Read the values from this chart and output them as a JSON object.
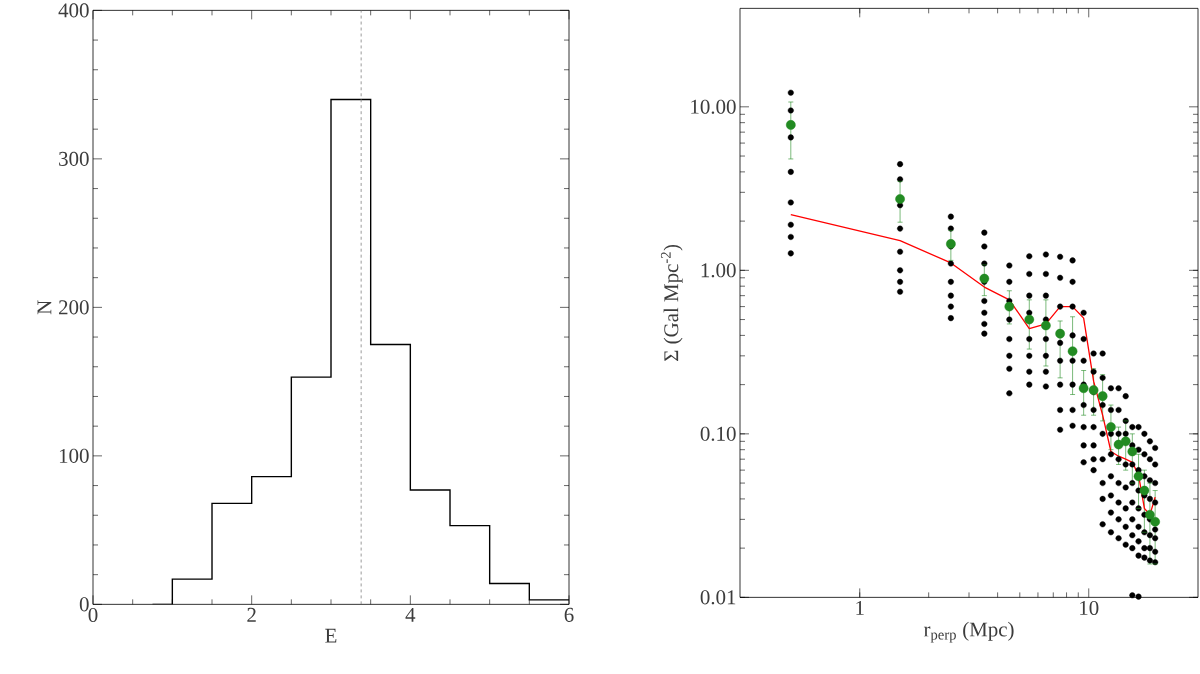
{
  "chart_data": [
    {
      "type": "histogram",
      "xlabel": "E",
      "ylabel": "N",
      "color": "#000000",
      "bins": [
        0.75,
        1.0,
        1.5,
        2.0,
        2.5,
        3.0,
        3.5,
        4.0,
        4.5,
        5.0,
        5.5,
        6.0
      ],
      "values": [
        0,
        17,
        68,
        86,
        153,
        340,
        175,
        77,
        53,
        14,
        3
      ],
      "xlim": [
        0,
        6
      ],
      "ylim": [
        0,
        400
      ],
      "xticks": [
        0,
        2,
        4,
        6
      ],
      "yticks": [
        0,
        100,
        200,
        300,
        400
      ],
      "ref_lines": [
        {
          "axis": "x",
          "value": 3.38,
          "color": "#808080",
          "line_style": "dashed"
        }
      ]
    },
    {
      "type": "scatter",
      "xlabel": "r$_{perp}$ (Mpc)",
      "ylabel": "Σ (Gal Mpc$^{-2}$)",
      "log": "xy",
      "xlim": [
        0.3,
        30
      ],
      "ylim": [
        0.01,
        40
      ],
      "xticks": [
        1,
        10
      ],
      "yticks": [
        {
          "value": 0.01,
          "label": "0.01"
        },
        {
          "value": 0.1,
          "label": "0.10"
        },
        {
          "value": 1,
          "label": "1.00"
        },
        {
          "value": 10,
          "label": "10.00"
        }
      ],
      "series": [
        {
          "type": "scatter",
          "color": "#000000",
          "marker": "circle",
          "x": [
            0.5,
            0.5,
            0.5,
            0.5,
            0.5,
            0.5,
            0.5,
            0.5,
            1.5,
            1.5,
            1.5,
            1.5,
            1.5,
            1.5,
            1.5,
            1.5,
            2.5,
            2.5,
            2.5,
            2.5,
            2.5,
            2.5,
            2.5,
            2.5,
            3.5,
            3.5,
            3.5,
            3.5,
            3.5,
            3.5,
            3.5,
            3.5,
            4.5,
            4.5,
            4.5,
            4.5,
            4.5,
            4.5,
            4.5,
            4.5,
            5.5,
            5.5,
            5.5,
            5.5,
            5.5,
            5.5,
            5.5,
            5.5,
            6.5,
            6.5,
            6.5,
            6.5,
            6.5,
            6.5,
            6.5,
            6.5,
            7.5,
            7.5,
            7.5,
            7.5,
            7.5,
            7.5,
            7.5,
            7.5,
            8.5,
            8.5,
            8.5,
            8.5,
            8.5,
            8.5,
            8.5,
            8.5,
            9.5,
            9.5,
            9.5,
            9.5,
            9.5,
            9.5,
            9.5,
            9.5,
            10.5,
            10.5,
            10.5,
            10.5,
            10.5,
            10.5,
            10.5,
            10.5,
            11.5,
            11.5,
            11.5,
            11.5,
            11.5,
            11.5,
            11.5,
            11.5,
            12.5,
            12.5,
            12.5,
            12.5,
            12.5,
            12.5,
            12.5,
            12.5,
            13.5,
            13.5,
            13.5,
            13.5,
            13.5,
            13.5,
            13.5,
            13.5,
            14.5,
            14.5,
            14.5,
            14.5,
            14.5,
            14.5,
            14.5,
            14.5,
            15.5,
            15.5,
            15.5,
            15.5,
            15.5,
            15.5,
            15.5,
            15.5,
            15.5,
            16.5,
            16.5,
            16.5,
            16.5,
            16.5,
            16.5,
            16.5,
            16.5,
            16.5,
            17.5,
            17.5,
            17.5,
            17.5,
            17.5,
            17.5,
            17.5,
            17.5,
            18.5,
            18.5,
            18.5,
            18.5,
            18.5,
            18.5,
            18.5,
            18.5,
            19.5,
            19.5,
            19.5,
            19.5,
            19.5,
            19.5,
            19.5,
            19.5
          ],
          "values": [
            12.2,
            9.5,
            6.5,
            4.0,
            2.6,
            1.9,
            1.6,
            1.27,
            4.46,
            3.6,
            2.5,
            1.8,
            1.3,
            1.0,
            0.85,
            0.74,
            2.13,
            1.8,
            1.4,
            1.1,
            0.85,
            0.7,
            0.6,
            0.51,
            1.7,
            1.4,
            1.1,
            0.85,
            0.65,
            0.55,
            0.47,
            0.41,
            1.07,
            0.85,
            0.65,
            0.5,
            0.38,
            0.3,
            0.25,
            0.177,
            1.22,
            0.95,
            0.7,
            0.55,
            0.38,
            0.3,
            0.24,
            0.2,
            1.25,
            0.95,
            0.7,
            0.5,
            0.38,
            0.3,
            0.24,
            0.195,
            1.21,
            0.9,
            0.6,
            0.36,
            0.28,
            0.2,
            0.14,
            0.106,
            1.15,
            0.85,
            0.6,
            0.4,
            0.28,
            0.2,
            0.14,
            0.112,
            0.55,
            0.38,
            0.28,
            0.2,
            0.15,
            0.11,
            0.085,
            0.067,
            0.31,
            0.24,
            0.18,
            0.14,
            0.11,
            0.085,
            0.07,
            0.06,
            0.31,
            0.22,
            0.15,
            0.1,
            0.07,
            0.05,
            0.04,
            0.028,
            0.19,
            0.14,
            0.1,
            0.075,
            0.055,
            0.042,
            0.033,
            0.025,
            0.19,
            0.14,
            0.1,
            0.07,
            0.05,
            0.038,
            0.03,
            0.023,
            0.17,
            0.12,
            0.1,
            0.065,
            0.047,
            0.035,
            0.027,
            0.021,
            0.11,
            0.085,
            0.065,
            0.05,
            0.038,
            0.03,
            0.024,
            0.02,
            0.0103,
            0.11,
            0.08,
            0.06,
            0.045,
            0.035,
            0.027,
            0.022,
            0.018,
            0.0101,
            0.1,
            0.075,
            0.055,
            0.042,
            0.032,
            0.025,
            0.02,
            0.0175,
            0.09,
            0.07,
            0.052,
            0.04,
            0.03,
            0.024,
            0.02,
            0.0168,
            0.082,
            0.065,
            0.05,
            0.038,
            0.026,
            0.023,
            0.019,
            0.0164
          ]
        },
        {
          "type": "line",
          "color": "#ff0000",
          "marker": "none",
          "x": [
            0.5,
            1.5,
            2.5,
            3.5,
            4.5,
            5.5,
            6.5,
            7.5,
            8.5,
            9.5,
            10.5,
            11.5,
            12.5,
            13.5,
            14.5,
            15.5,
            16.5,
            17.5,
            18.5,
            19.5
          ],
          "values": [
            2.19,
            1.52,
            1.11,
            0.79,
            0.66,
            0.44,
            0.47,
            0.6,
            0.6,
            0.51,
            0.21,
            0.13,
            0.078,
            0.073,
            0.07,
            0.067,
            0.056,
            0.035,
            0.032,
            0.041
          ]
        },
        {
          "type": "scatter",
          "color": "#228b22",
          "marker": "circle",
          "x": [
            0.5,
            1.5,
            2.5,
            3.5,
            4.5,
            5.5,
            6.5,
            7.5,
            8.5,
            9.5,
            10.5,
            11.5,
            12.5,
            13.5,
            14.5,
            15.5,
            16.5,
            17.5,
            18.5,
            19.5
          ],
          "values": [
            7.75,
            2.73,
            1.45,
            0.89,
            0.6,
            0.5,
            0.46,
            0.41,
            0.32,
            0.19,
            0.185,
            0.17,
            0.11,
            0.086,
            0.09,
            0.078,
            0.055,
            0.045,
            0.032,
            0.029
          ],
          "errors": [
            [
              4.8,
              10.7
            ],
            [
              1.97,
              3.5
            ],
            [
              1.15,
              1.75
            ],
            [
              0.7,
              1.08
            ],
            [
              0.47,
              0.75
            ],
            [
              0.33,
              0.66
            ],
            [
              0.26,
              0.66
            ],
            [
              0.22,
              0.49
            ],
            [
              0.174,
              0.52
            ],
            [
              0.13,
              0.244
            ],
            [
              0.13,
              0.25
            ],
            [
              0.12,
              0.23
            ],
            [
              0.08,
              0.15
            ],
            [
              0.065,
              0.11
            ],
            [
              0.06,
              0.12
            ],
            [
              0.05,
              0.1
            ],
            [
              0.035,
              0.075
            ],
            [
              0.025,
              0.06
            ],
            [
              0.016,
              0.05
            ],
            [
              0.016,
              0.045
            ]
          ]
        }
      ]
    }
  ]
}
